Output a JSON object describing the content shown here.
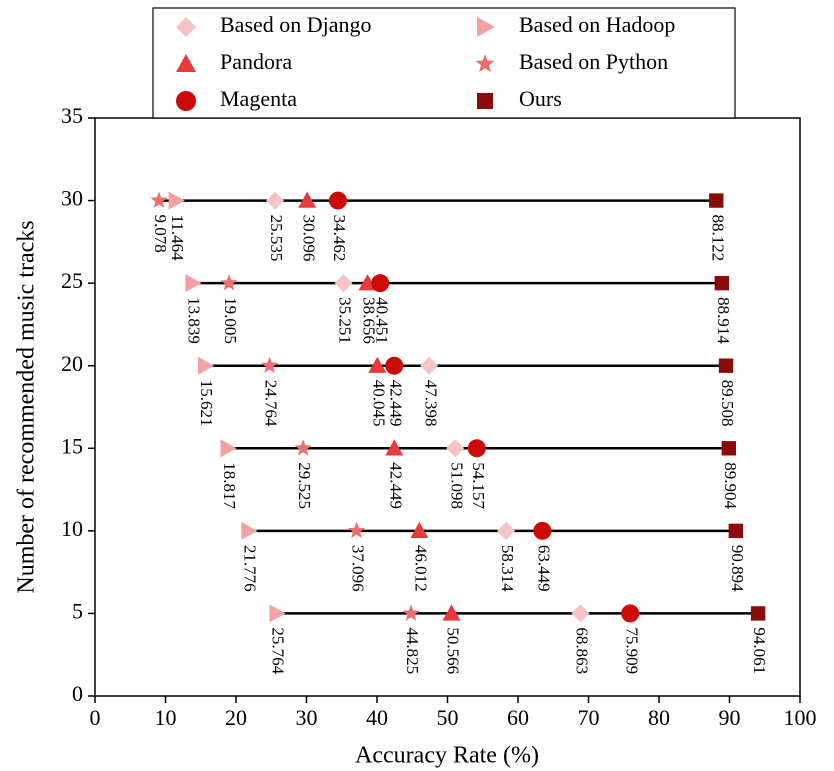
{
  "chart_data": {
    "type": "scatter",
    "x_label": "Accuracy Rate (%)",
    "y_label": "Number of recommended music tracks",
    "xlim": [
      0,
      100
    ],
    "ylim": [
      0,
      35
    ],
    "xticks": [
      0,
      10,
      20,
      30,
      40,
      50,
      60,
      70,
      80,
      90,
      100
    ],
    "yticks": [
      0,
      5,
      10,
      15,
      20,
      25,
      30,
      35
    ],
    "y": [
      30,
      25,
      20,
      15,
      10,
      5
    ],
    "series": [
      {
        "name": "Based on Django",
        "color": "#f6c4c4",
        "marker": "diamond",
        "x": [
          25.535,
          35.251,
          47.398,
          51.098,
          58.314,
          68.863
        ]
      },
      {
        "name": "Pandora",
        "color": "#e83a3a",
        "marker": "triangle-up",
        "x": [
          30.096,
          38.656,
          40.045,
          42.449,
          46.012,
          50.566
        ]
      },
      {
        "name": "Magenta",
        "color": "#cc0a0a",
        "marker": "circle",
        "x": [
          34.462,
          40.451,
          42.449,
          54.157,
          63.449,
          75.909
        ]
      },
      {
        "name": "Based on Hadoop",
        "color": "#f2a2a2",
        "marker": "triangle-right",
        "x": [
          11.464,
          13.839,
          15.621,
          18.817,
          21.776,
          25.764
        ]
      },
      {
        "name": "Based on Python",
        "color": "#ee6e6e",
        "marker": "star",
        "x": [
          9.078,
          19.005,
          24.764,
          29.525,
          37.096,
          44.825
        ]
      },
      {
        "name": "Ours",
        "color": "#8b0a0a",
        "marker": "square",
        "x": [
          88.122,
          88.914,
          89.508,
          89.904,
          90.894,
          94.061
        ]
      }
    ]
  }
}
